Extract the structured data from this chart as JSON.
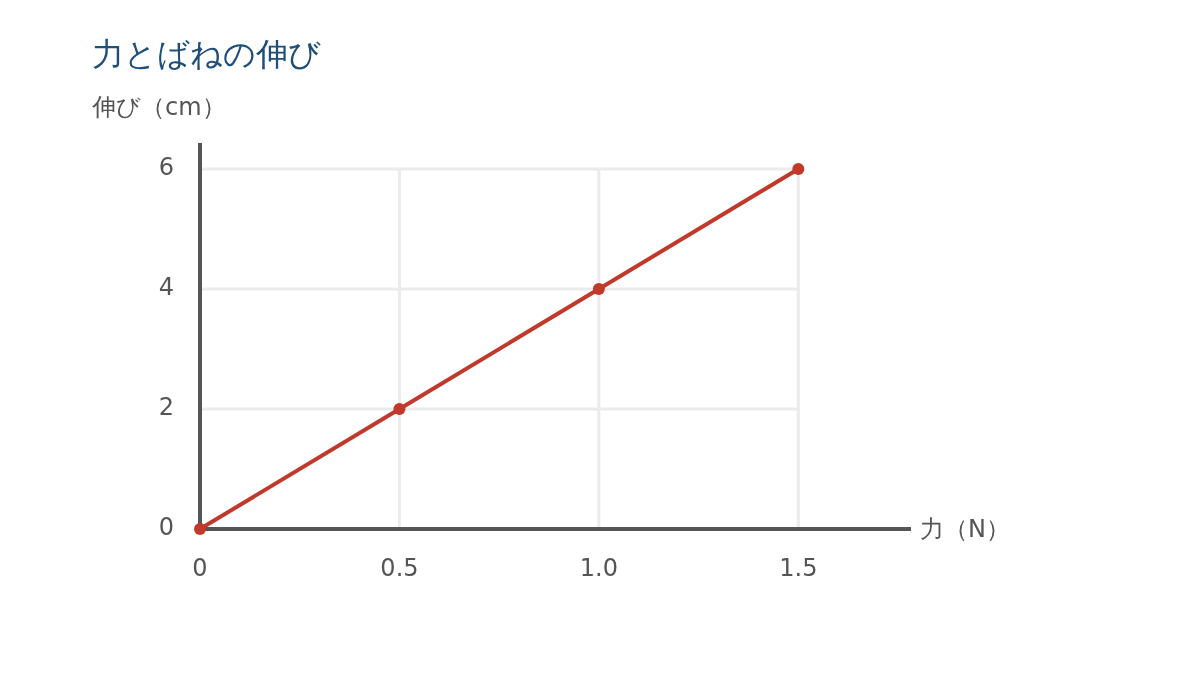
{
  "chart_data": {
    "type": "line",
    "title": "力とばねの伸び",
    "xlabel": "力（N）",
    "ylabel": "伸び（cm）",
    "x": [
      0,
      0.5,
      1.0,
      1.5
    ],
    "series": [
      {
        "color": "#c0392b",
        "values": [
          0,
          2,
          4,
          6
        ]
      }
    ],
    "xlim": [
      0,
      1.78
    ],
    "ylim": [
      0,
      6.4
    ],
    "xticks": [
      0,
      0.5,
      {
        "value": 1,
        "label": "1.0"
      },
      1.5
    ],
    "yticks": [
      0,
      2,
      4,
      6
    ],
    "grid": true,
    "marker": "circle",
    "line_style": "solid"
  }
}
